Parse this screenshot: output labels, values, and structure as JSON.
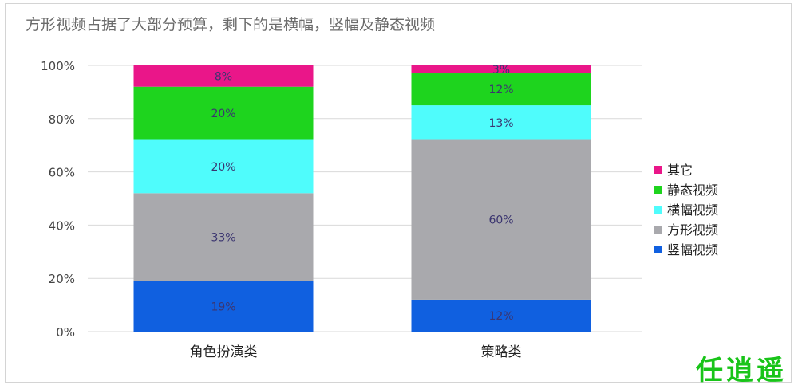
{
  "chart_data": {
    "type": "bar",
    "stacked": true,
    "title": "方形视频占据了大部分预算，剩下的是横幅，竖幅及静态视频",
    "xlabel": "",
    "ylabel": "",
    "ylim": [
      0,
      100
    ],
    "yticks": [
      "0%",
      "20%",
      "40%",
      "60%",
      "80%",
      "100%"
    ],
    "grid": true,
    "legend_position": "right",
    "categories": [
      "角色扮演类",
      "策略类"
    ],
    "series": [
      {
        "name": "竖幅视频",
        "color": "#1060e0",
        "values": [
          19,
          12
        ],
        "labels": [
          "19%",
          "12%"
        ]
      },
      {
        "name": "方形视频",
        "color": "#a9a9ad",
        "values": [
          33,
          60
        ],
        "labels": [
          "33%",
          "60%"
        ]
      },
      {
        "name": "横幅视频",
        "color": "#4ffcfc",
        "values": [
          20,
          13
        ],
        "labels": [
          "20%",
          "13%"
        ]
      },
      {
        "name": "静态视频",
        "color": "#1ed41e",
        "values": [
          20,
          12
        ],
        "labels": [
          "20%",
          "12%"
        ]
      },
      {
        "name": "其它",
        "color": "#ea1689",
        "values": [
          8,
          3
        ],
        "labels": [
          "8%",
          "3%"
        ]
      }
    ],
    "legend_order": [
      "其它",
      "静态视频",
      "横幅视频",
      "方形视频",
      "竖幅视频"
    ]
  },
  "watermark": "任逍遥"
}
